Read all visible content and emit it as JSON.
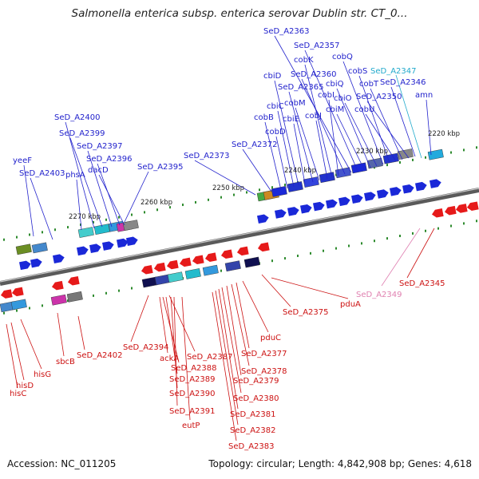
{
  "title": "Salmonella enterica subsp. enterica serovar Dublin str. CT_0...",
  "footer": {
    "accession": "Accession: NC_011205",
    "summary": "Topology: circular; Length: 4,842,908 bp; Genes: 4,618"
  },
  "colors": {
    "forward_label": "#2222cc",
    "reverse_label": "#cc1111",
    "cyan_label": "#22aacc",
    "pink_label": "#e080b0",
    "backbone": "#777777",
    "tick": "#2e8b2e"
  },
  "ticks": [
    {
      "label": "2220 kbp"
    },
    {
      "label": "2230 kbp"
    },
    {
      "label": "2240 kbp"
    },
    {
      "label": "2250 kbp"
    },
    {
      "label": "2260 kbp"
    },
    {
      "label": "2270 kbp"
    }
  ],
  "forward_genes": [
    {
      "label": "yeeF"
    },
    {
      "label": "SeD_A2403"
    },
    {
      "label": "phsA"
    },
    {
      "label": "SeD_A2400"
    },
    {
      "label": "SeD_A2399"
    },
    {
      "label": "SeD_A2397"
    },
    {
      "label": "SeD_A2396"
    },
    {
      "label": "dacD"
    },
    {
      "label": "SeD_A2395"
    },
    {
      "label": "SeD_A2373"
    },
    {
      "label": "SeD_A2372"
    },
    {
      "label": "cobB"
    },
    {
      "label": "cobD"
    },
    {
      "label": "cbiC"
    },
    {
      "label": "cbiD"
    },
    {
      "label": "cbiE"
    },
    {
      "label": "SeD_A2365"
    },
    {
      "label": "cobM"
    },
    {
      "label": "cobJ"
    },
    {
      "label": "cobK"
    },
    {
      "label": "cobI"
    },
    {
      "label": "SeD_A2360"
    },
    {
      "label": "SeD_A2363"
    },
    {
      "label": "SeD_A2357"
    },
    {
      "label": "cbiM"
    },
    {
      "label": "cbiQ"
    },
    {
      "label": "cbiO"
    },
    {
      "label": "cobQ"
    },
    {
      "label": "cobS"
    },
    {
      "label": "cobU"
    },
    {
      "label": "cobT"
    },
    {
      "label": "SeD_A2350"
    },
    {
      "label": "SeD_A2346"
    },
    {
      "label": "amn"
    }
  ],
  "cyan_genes": [
    {
      "label": "SeD_A2347"
    }
  ],
  "pink_genes": [
    {
      "label": "SeD_A2349"
    }
  ],
  "reverse_genes": [
    {
      "label": "hisC"
    },
    {
      "label": "hisD"
    },
    {
      "label": "hisG"
    },
    {
      "label": "sbcB"
    },
    {
      "label": "SeD_A2402"
    },
    {
      "label": "SeD_A2394"
    },
    {
      "label": "ackA"
    },
    {
      "label": "SeD_A2387"
    },
    {
      "label": "SeD_A2388"
    },
    {
      "label": "SeD_A2389"
    },
    {
      "label": "SeD_A2390"
    },
    {
      "label": "SeD_A2391"
    },
    {
      "label": "eutP"
    },
    {
      "label": "pduC"
    },
    {
      "label": "SeD_A2377"
    },
    {
      "label": "SeD_A2378"
    },
    {
      "label": "SeD_A2379"
    },
    {
      "label": "SeD_A2380"
    },
    {
      "label": "SeD_A2381"
    },
    {
      "label": "SeD_A2382"
    },
    {
      "label": "SeD_A2383"
    },
    {
      "label": "SeD_A2375"
    },
    {
      "label": "pduA"
    },
    {
      "label": "SeD_A2345"
    }
  ]
}
